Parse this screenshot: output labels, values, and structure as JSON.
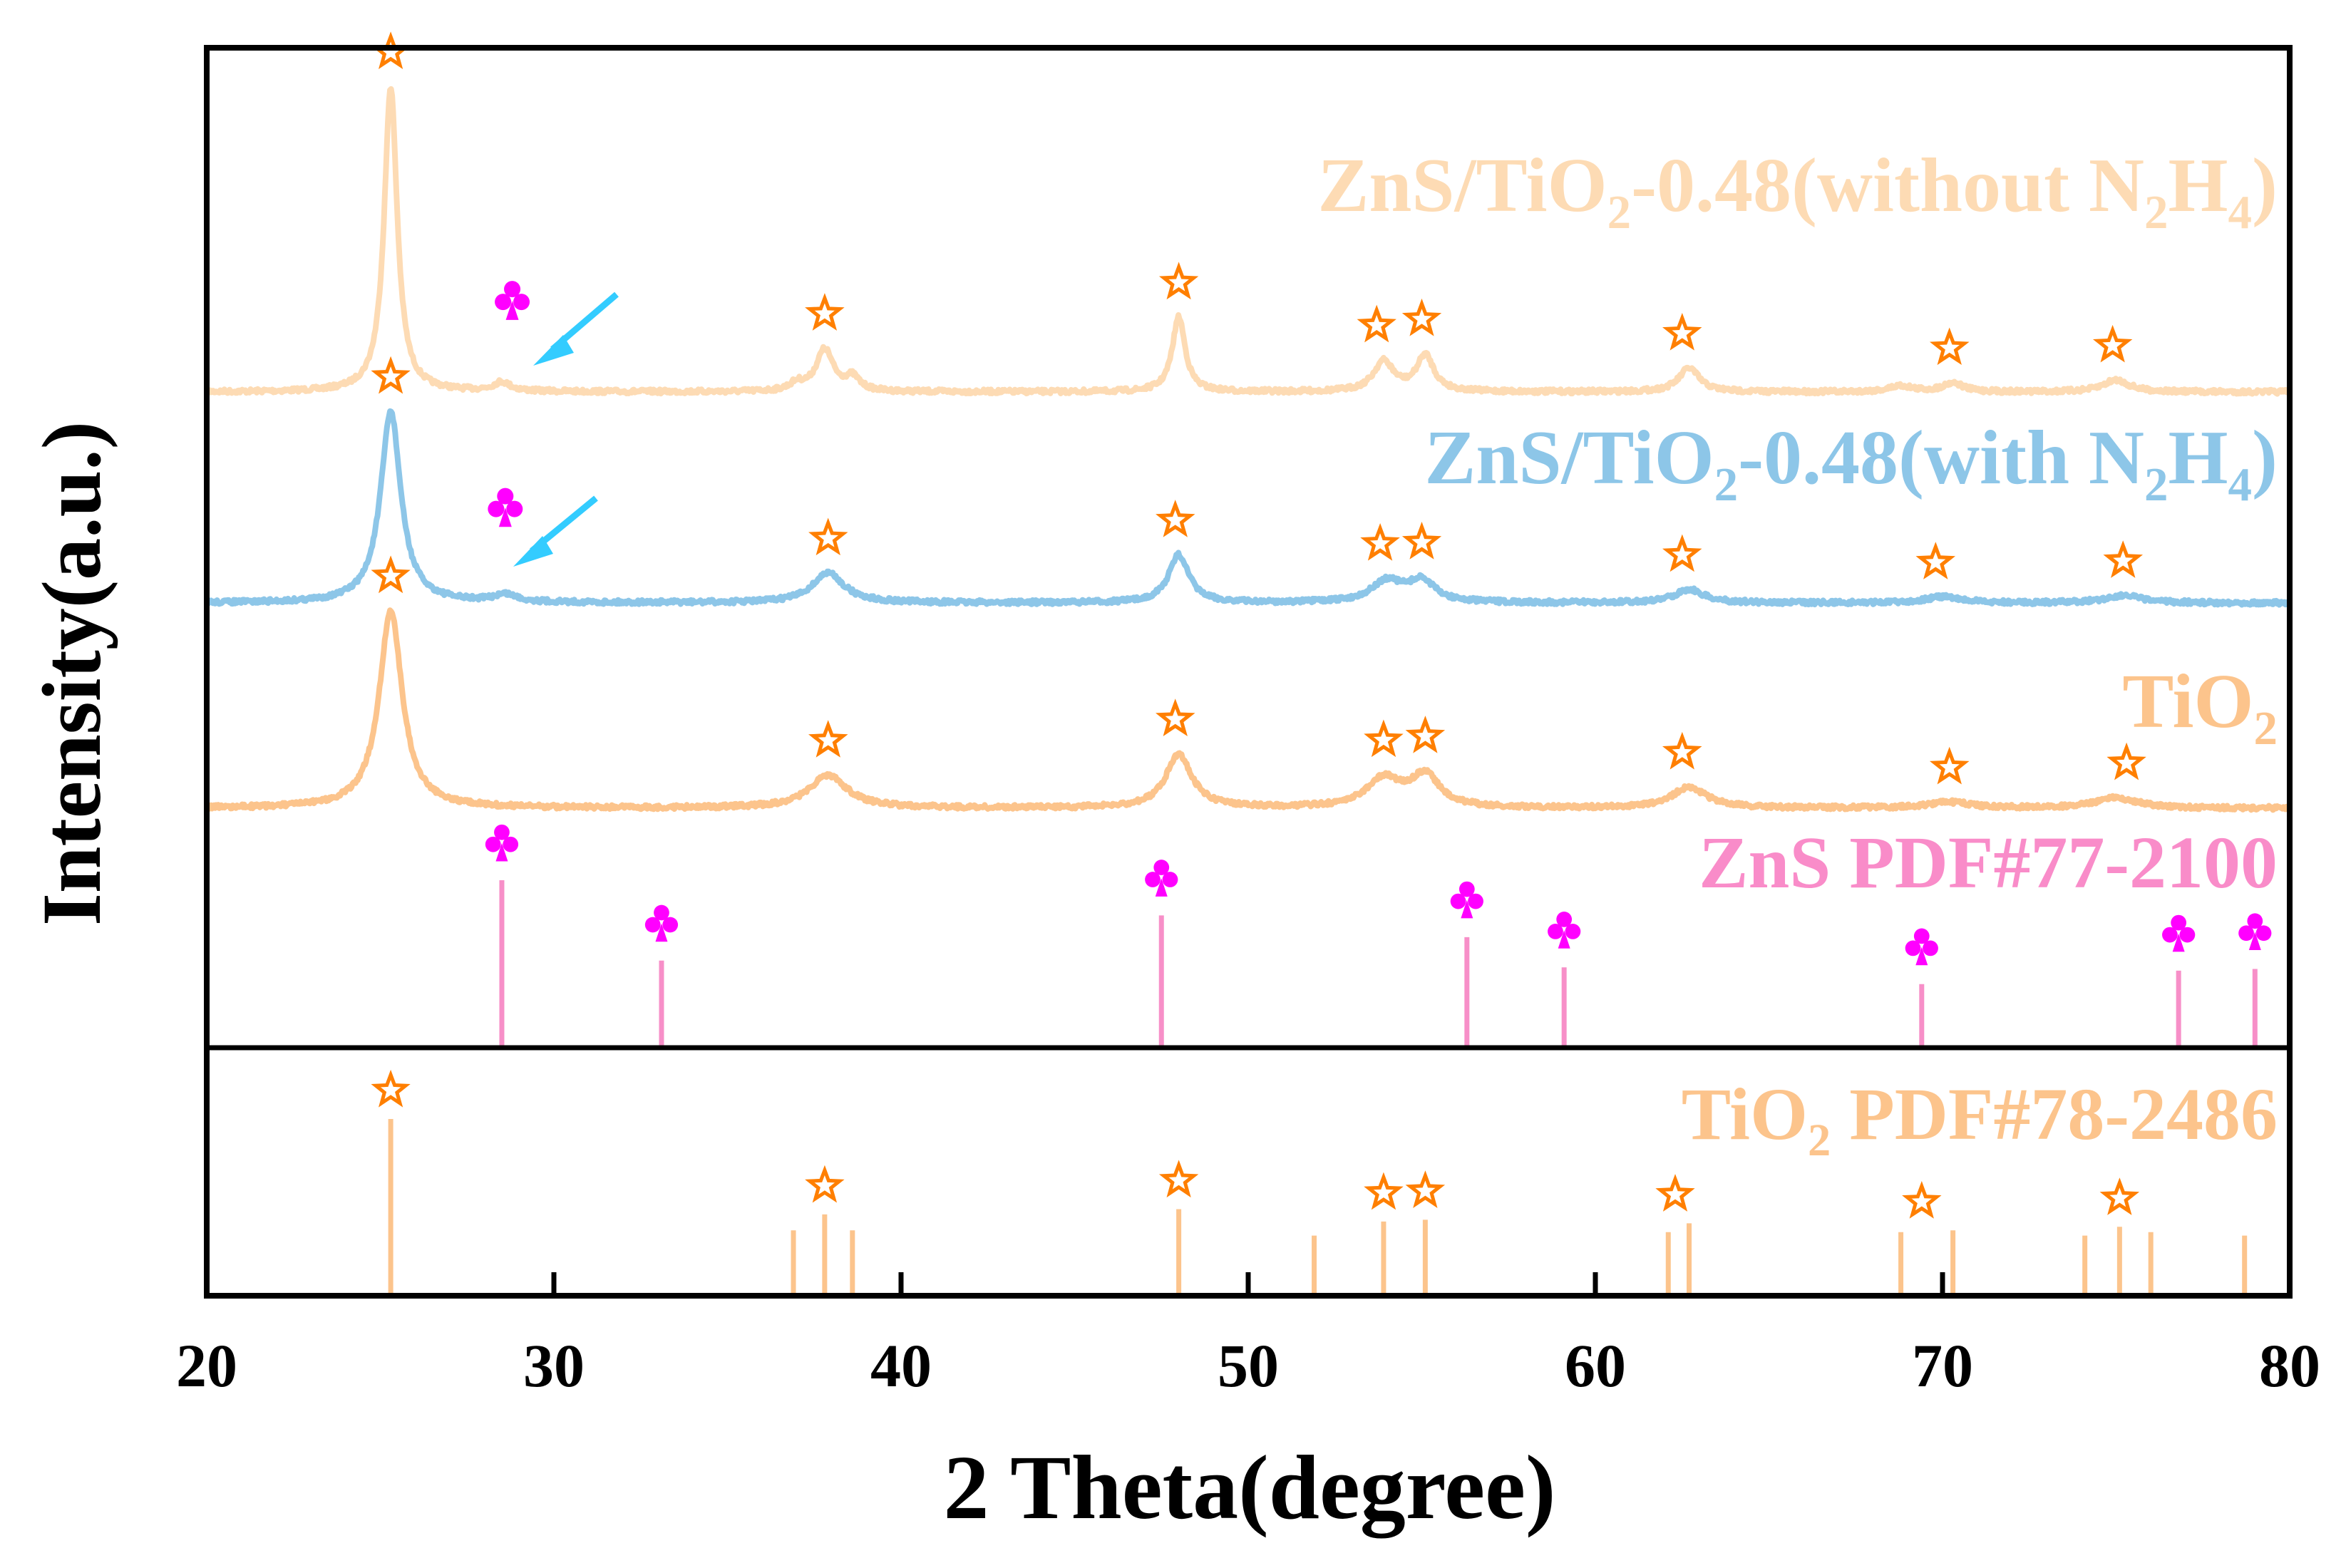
{
  "chart_data": {
    "type": "line",
    "xlabel": "2 Theta(degree)",
    "ylabel": "Intensity(a.u.)",
    "xlim": [
      20,
      80
    ],
    "xticks": [
      "20",
      "30",
      "40",
      "50",
      "60",
      "70",
      "80"
    ],
    "yticks": [],
    "grid": false,
    "legend": "labels placed at right above each pattern",
    "series": [
      {
        "name_parts": [
          {
            "t": "ZnS/TiO"
          },
          {
            "t": "2",
            "sub": true
          },
          {
            "t": "-0.48(without N"
          },
          {
            "t": "2",
            "sub": true
          },
          {
            "t": "H"
          },
          {
            "t": "4",
            "sub": true
          },
          {
            "t": ")"
          }
        ],
        "color": "#FDDBB4",
        "peaks": [
          [
            25.3,
            204,
            0.45
          ],
          [
            28.5,
            6,
            0.6
          ],
          [
            37.0,
            5,
            0.5
          ],
          [
            37.8,
            28,
            0.6
          ],
          [
            38.6,
            9,
            0.5
          ],
          [
            48.0,
            50,
            0.45
          ],
          [
            53.9,
            20,
            0.7
          ],
          [
            55.1,
            24,
            0.6
          ],
          [
            62.7,
            16,
            0.7
          ],
          [
            68.8,
            4,
            0.8
          ],
          [
            70.3,
            6,
            0.7
          ],
          [
            75.0,
            8,
            0.9
          ]
        ],
        "star_markers": [
          25.3,
          37.8,
          48.0,
          53.7,
          55.0,
          62.5,
          70.2,
          74.9
        ],
        "club_markers": [
          28.8
        ]
      },
      {
        "name_parts": [
          {
            "t": "ZnS/TiO"
          },
          {
            "t": "2",
            "sub": true
          },
          {
            "t": "-0.48(with N"
          },
          {
            "t": "2",
            "sub": true
          },
          {
            "t": "H"
          },
          {
            "t": "4",
            "sub": true
          },
          {
            "t": ")"
          }
        ],
        "color": "#8DC6E8",
        "peaks": [
          [
            25.3,
            128,
            0.7
          ],
          [
            28.6,
            5,
            0.8
          ],
          [
            37.9,
            20,
            1.1
          ],
          [
            48.0,
            32,
            0.7
          ],
          [
            54.0,
            14,
            1.1
          ],
          [
            55.0,
            14,
            0.9
          ],
          [
            62.7,
            9,
            1.0
          ],
          [
            70.0,
            4,
            1.2
          ],
          [
            75.2,
            5,
            1.2
          ]
        ],
        "star_markers": [
          25.3,
          37.9,
          47.9,
          53.8,
          55.0,
          62.5,
          69.8,
          75.2
        ],
        "club_markers": [
          28.6
        ]
      },
      {
        "name_parts": [
          {
            "t": "TiO"
          },
          {
            "t": "2",
            "sub": true
          }
        ],
        "color": "#FCC48C",
        "peaks": [
          [
            25.3,
            132,
            0.8
          ],
          [
            37.9,
            22,
            1.3
          ],
          [
            48.0,
            36,
            0.9
          ],
          [
            53.9,
            19,
            1.2
          ],
          [
            55.1,
            21,
            1.0
          ],
          [
            62.7,
            14,
            1.2
          ],
          [
            70.2,
            4,
            1.4
          ],
          [
            75.0,
            7,
            1.4
          ]
        ],
        "star_markers": [
          25.3,
          37.9,
          47.9,
          53.9,
          55.1,
          62.5,
          70.2,
          75.3
        ],
        "club_markers": []
      }
    ],
    "reference_patterns": [
      {
        "name_parts": [
          {
            "t": "ZnS PDF#77-2100"
          }
        ],
        "color": "#F78FC8",
        "label_color": "#F98CC9",
        "marker": "club",
        "marker_color": "#FF00FF",
        "sticks": [
          [
            28.5,
            100
          ],
          [
            33.1,
            52
          ],
          [
            47.5,
            79
          ],
          [
            56.3,
            66
          ],
          [
            59.1,
            48
          ],
          [
            69.4,
            38
          ],
          [
            76.8,
            46
          ],
          [
            79.0,
            47
          ]
        ]
      },
      {
        "name_parts": [
          {
            "t": "TiO"
          },
          {
            "t": "2",
            "sub": true
          },
          {
            "t": " PDF#78-2486"
          }
        ],
        "color": "#FCC48C",
        "label_color": "#FCC48C",
        "marker": "star",
        "marker_color": "#FF7F00",
        "sticks": [
          [
            25.3,
            100
          ],
          [
            36.9,
            37
          ],
          [
            37.8,
            46
          ],
          [
            38.6,
            37
          ],
          [
            48.0,
            49
          ],
          [
            51.9,
            34
          ],
          [
            53.9,
            42
          ],
          [
            55.1,
            43
          ],
          [
            62.1,
            36
          ],
          [
            62.7,
            41
          ],
          [
            68.8,
            36
          ],
          [
            70.3,
            37
          ],
          [
            74.1,
            34
          ],
          [
            75.1,
            39
          ],
          [
            76.0,
            36
          ],
          [
            78.7,
            34
          ]
        ],
        "star_markers": [
          25.3,
          37.8,
          48.0,
          53.9,
          55.1,
          62.3,
          69.4,
          75.1
        ]
      }
    ],
    "colors": {
      "star": "#FF7F00",
      "club": "#FF00FF",
      "arrow": "#33CCFF",
      "axis": "#000000"
    }
  }
}
